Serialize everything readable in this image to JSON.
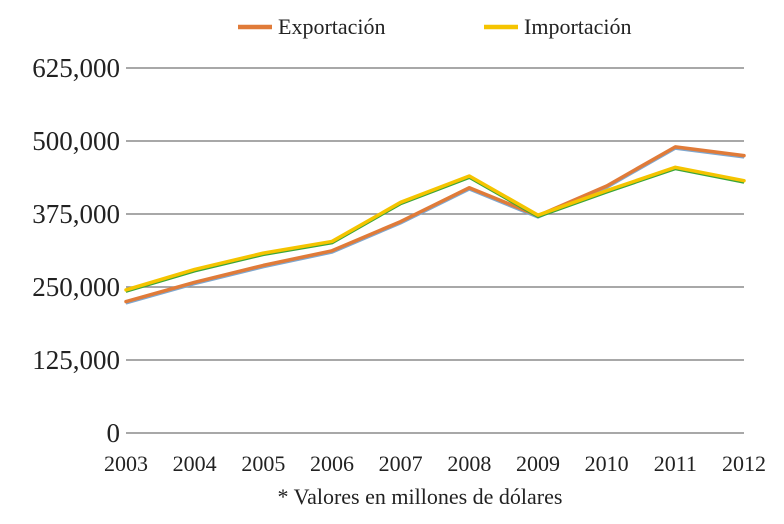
{
  "chart_data": {
    "type": "line",
    "title": "",
    "xlabel": "",
    "ylabel": "",
    "x": [
      "2003",
      "2004",
      "2005",
      "2006",
      "2007",
      "2008",
      "2009",
      "2010",
      "2011",
      "2012"
    ],
    "ylim": [
      0,
      625000
    ],
    "yticks": [
      "0",
      "125,000",
      "250,000",
      "375,000",
      "500,000",
      "625,000"
    ],
    "grid": true,
    "legend_position": "top",
    "series": [
      {
        "name": "Exportación",
        "color": "#e07b39",
        "values": [
          225000,
          258000,
          287000,
          312000,
          362000,
          420000,
          372000,
          423000,
          490000,
          475000
        ]
      },
      {
        "name": "Importación",
        "color": "#f5c400",
        "values": [
          245000,
          280000,
          308000,
          328000,
          395000,
          440000,
          373000,
          415000,
          455000,
          432000
        ]
      }
    ],
    "annotation": "* Valores en millones de dólares"
  }
}
